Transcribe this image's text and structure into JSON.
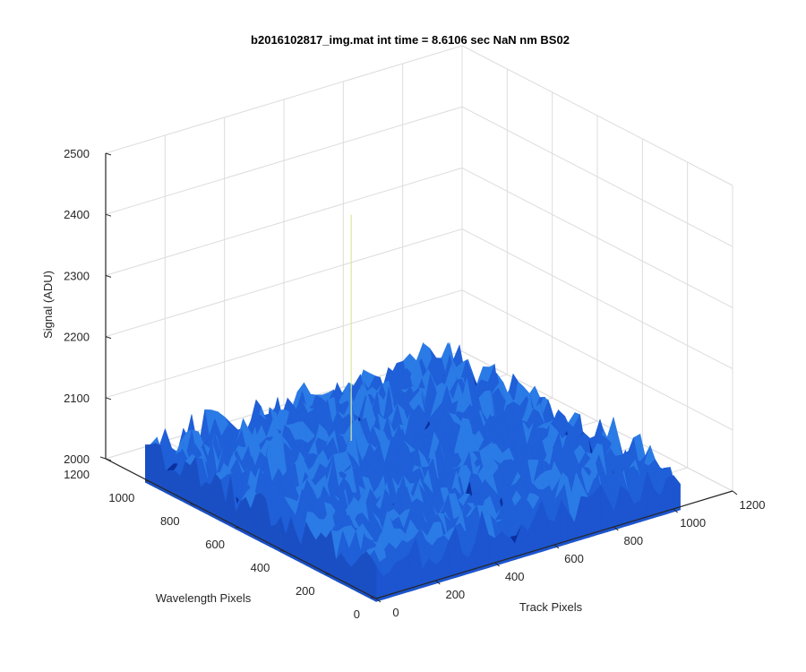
{
  "chart_data": {
    "type": "surface",
    "title": "b2016102817_img.mat int time = 8.6106 sec  NaN nm BS02",
    "xlabel": "Track Pixels",
    "ylabel": "Wavelength Pixels",
    "zlabel": "Signal (ADU)",
    "xlim": [
      0,
      1200
    ],
    "ylim": [
      0,
      1200
    ],
    "zlim": [
      2000,
      2500
    ],
    "x_ticks": [
      "0",
      "200",
      "400",
      "600",
      "800",
      "1000",
      "1200"
    ],
    "y_ticks": [
      "0",
      "200",
      "400",
      "600",
      "800",
      "1000",
      "1200"
    ],
    "z_ticks": [
      "2000",
      "2100",
      "2200",
      "2300",
      "2400",
      "2500"
    ],
    "grid": true,
    "surface": {
      "x_extent": [
        0,
        1024
      ],
      "y_extent": [
        0,
        1024
      ],
      "baseline_signal": 2050,
      "noise_range": [
        2010,
        2100
      ],
      "spike": {
        "x": 470,
        "y": 730,
        "value": 2420
      },
      "colormap": [
        "#0b2f9e",
        "#1f5fd8",
        "#2b7be6",
        "#33a0f0",
        "#d9e8a0"
      ]
    }
  }
}
